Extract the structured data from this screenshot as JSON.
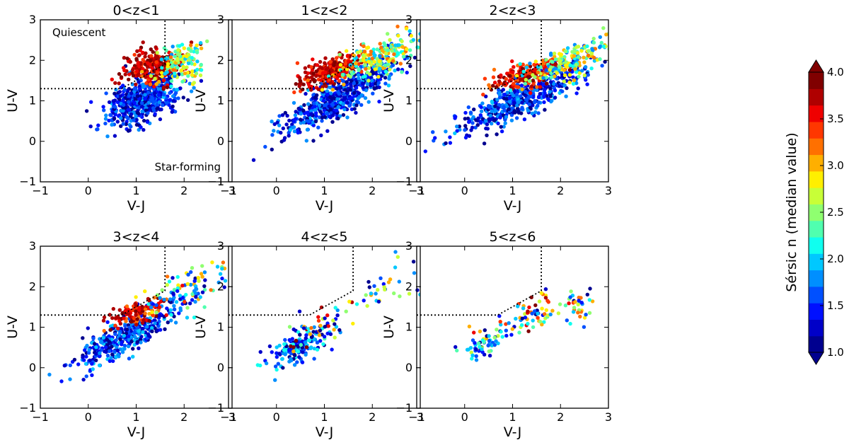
{
  "chart_data": {
    "type": "scatter",
    "description_free": true,
    "shared_axes": {
      "xlabel": "V-J",
      "ylabel": "U-V",
      "xlim": [
        -1,
        3
      ],
      "ylim": [
        -1,
        3
      ],
      "xticks": [
        -1,
        0,
        1,
        2,
        3
      ],
      "yticks": [
        -1,
        0,
        1,
        2,
        3
      ],
      "xtick_labels": [
        "−1",
        "0",
        "1",
        "2",
        "3"
      ],
      "ytick_labels": [
        "−1",
        "0",
        "1",
        "2",
        "3"
      ]
    },
    "selection_boundary": {
      "style": "dotted",
      "points": [
        [
          -1,
          1.3
        ],
        [
          0.69,
          1.3
        ],
        [
          1.6,
          1.9
        ],
        [
          1.6,
          3
        ]
      ]
    },
    "annotations": {
      "quiescent": "Quiescent",
      "star_forming": "Star-forming"
    },
    "colorbar": {
      "label": "Sérsic n (median value)",
      "range": [
        1.0,
        4.0
      ],
      "ticks": [
        1.0,
        1.5,
        2.0,
        2.5,
        3.0,
        3.5,
        4.0
      ],
      "tick_labels": [
        "1.0",
        "1.5",
        "2.0",
        "2.5",
        "3.0",
        "3.5",
        "4.0"
      ],
      "colors": [
        "#00008f",
        "#0000c8",
        "#0010ff",
        "#0050ff",
        "#008fff",
        "#00c8ff",
        "#10ffef",
        "#50ffaf",
        "#8fff70",
        "#c8ff37",
        "#ffef00",
        "#ffaf00",
        "#ff7000",
        "#ff3700",
        "#ef0000",
        "#af0000",
        "#800000"
      ]
    },
    "panels": [
      {
        "title": "0<z<1",
        "clouds": [
          {
            "n": 520,
            "x0": 1.15,
            "y0": 1.05,
            "sx": 0.38,
            "sy": 0.28,
            "slope": 0.45,
            "cmin": 1.0,
            "cmax": 1.9
          },
          {
            "n": 230,
            "x0": 1.35,
            "y0": 1.85,
            "sx": 0.32,
            "sy": 0.22,
            "slope": 0.2,
            "cmin": 3.4,
            "cmax": 4.0
          },
          {
            "n": 140,
            "x0": 1.9,
            "y0": 1.95,
            "sx": 0.28,
            "sy": 0.25,
            "slope": 0.35,
            "cmin": 1.8,
            "cmax": 3.2
          }
        ]
      },
      {
        "title": "1<z<2",
        "clouds": [
          {
            "n": 560,
            "x0": 1.3,
            "y0": 1.1,
            "sx": 0.6,
            "sy": 0.25,
            "slope": 0.62,
            "cmin": 1.0,
            "cmax": 1.9
          },
          {
            "n": 260,
            "x0": 1.15,
            "y0": 1.75,
            "sx": 0.35,
            "sy": 0.15,
            "slope": 0.35,
            "cmin": 3.3,
            "cmax": 4.0
          },
          {
            "n": 200,
            "x0": 2.1,
            "y0": 2.05,
            "sx": 0.45,
            "sy": 0.22,
            "slope": 0.45,
            "cmin": 1.8,
            "cmax": 3.3
          }
        ]
      },
      {
        "title": "2<z<3",
        "clouds": [
          {
            "n": 520,
            "x0": 1.2,
            "y0": 1.05,
            "sx": 0.65,
            "sy": 0.22,
            "slope": 0.55,
            "cmin": 1.0,
            "cmax": 1.9
          },
          {
            "n": 200,
            "x0": 1.3,
            "y0": 1.65,
            "sx": 0.35,
            "sy": 0.14,
            "slope": 0.3,
            "cmin": 3.2,
            "cmax": 4.0
          },
          {
            "n": 180,
            "x0": 2.2,
            "y0": 2.0,
            "sx": 0.45,
            "sy": 0.22,
            "slope": 0.45,
            "cmin": 1.6,
            "cmax": 3.2
          }
        ]
      },
      {
        "title": "3<z<4",
        "clouds": [
          {
            "n": 380,
            "x0": 0.75,
            "y0": 0.75,
            "sx": 0.5,
            "sy": 0.2,
            "slope": 0.6,
            "cmin": 1.0,
            "cmax": 2.0
          },
          {
            "n": 120,
            "x0": 1.0,
            "y0": 1.35,
            "sx": 0.3,
            "sy": 0.14,
            "slope": 0.3,
            "cmin": 3.2,
            "cmax": 4.0
          },
          {
            "n": 110,
            "x0": 2.0,
            "y0": 1.85,
            "sx": 0.55,
            "sy": 0.28,
            "slope": 0.45,
            "cmin": 1.0,
            "cmax": 3.5
          }
        ]
      },
      {
        "title": "4<z<5",
        "clouds": [
          {
            "n": 150,
            "x0": 0.5,
            "y0": 0.55,
            "sx": 0.3,
            "sy": 0.2,
            "slope": 0.5,
            "cmin": 1.0,
            "cmax": 2.2
          },
          {
            "n": 55,
            "x0": 1.1,
            "y0": 1.1,
            "sx": 0.4,
            "sy": 0.25,
            "slope": 0.5,
            "cmin": 1.0,
            "cmax": 4.0
          },
          {
            "n": 28,
            "x0": 2.3,
            "y0": 2.0,
            "sx": 0.4,
            "sy": 0.35,
            "slope": 0.6,
            "cmin": 1.0,
            "cmax": 3.0
          }
        ]
      },
      {
        "title": "5<z<6",
        "clouds": [
          {
            "n": 60,
            "x0": 0.35,
            "y0": 0.55,
            "sx": 0.25,
            "sy": 0.15,
            "slope": 0.3,
            "cmin": 1.0,
            "cmax": 3.0
          },
          {
            "n": 75,
            "x0": 1.35,
            "y0": 1.3,
            "sx": 0.45,
            "sy": 0.2,
            "slope": 0.45,
            "cmin": 1.0,
            "cmax": 4.0
          },
          {
            "n": 30,
            "x0": 2.3,
            "y0": 1.55,
            "sx": 0.22,
            "sy": 0.2,
            "slope": 0.2,
            "cmin": 1.0,
            "cmax": 3.5
          }
        ]
      }
    ]
  }
}
